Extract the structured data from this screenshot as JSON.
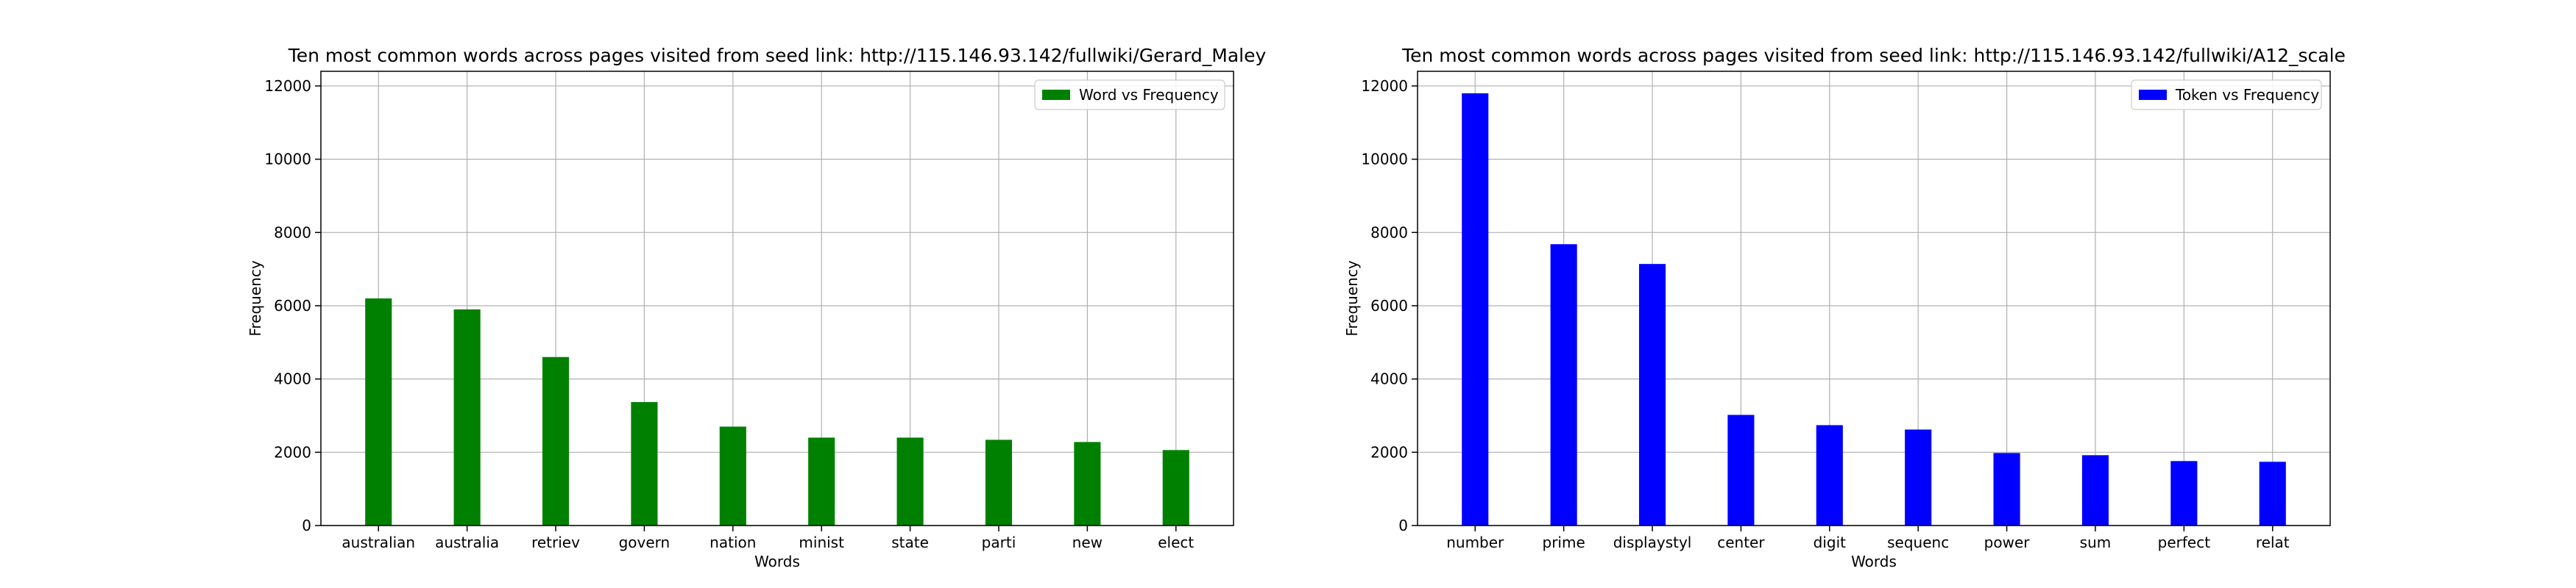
{
  "chart_data": [
    {
      "type": "bar",
      "title": "Ten most common words across pages visited from seed link: http://115.146.93.142/fullwiki/Gerard_Maley",
      "xlabel": "Words",
      "ylabel": "Frequency",
      "categories": [
        "australian",
        "australia",
        "retriev",
        "govern",
        "nation",
        "minist",
        "state",
        "parti",
        "new",
        "elect"
      ],
      "series": [
        {
          "name": "Word vs Frequency",
          "color": "#008000",
          "values": [
            6200,
            5900,
            4600,
            3370,
            2700,
            2400,
            2400,
            2340,
            2280,
            2060
          ]
        }
      ],
      "ylim": [
        0,
        12400
      ],
      "yticks": [
        0,
        2000,
        4000,
        6000,
        8000,
        10000,
        12000
      ],
      "grid": true,
      "legend_position": "top-right"
    },
    {
      "type": "bar",
      "title": "Ten most common words across pages visited from seed link: http://115.146.93.142/fullwiki/A12_scale",
      "xlabel": "Words",
      "ylabel": "Frequency",
      "categories": [
        "number",
        "prime",
        "displaystyl",
        "center",
        "digit",
        "sequenc",
        "power",
        "sum",
        "perfect",
        "relat"
      ],
      "series": [
        {
          "name": "Token vs Frequency",
          "color": "#0000ff",
          "values": [
            11800,
            7680,
            7140,
            3020,
            2740,
            2620,
            1980,
            1920,
            1760,
            1740
          ]
        }
      ],
      "ylim": [
        0,
        12400
      ],
      "yticks": [
        0,
        2000,
        4000,
        6000,
        8000,
        10000,
        12000
      ],
      "grid": true,
      "legend_position": "top-right"
    }
  ]
}
